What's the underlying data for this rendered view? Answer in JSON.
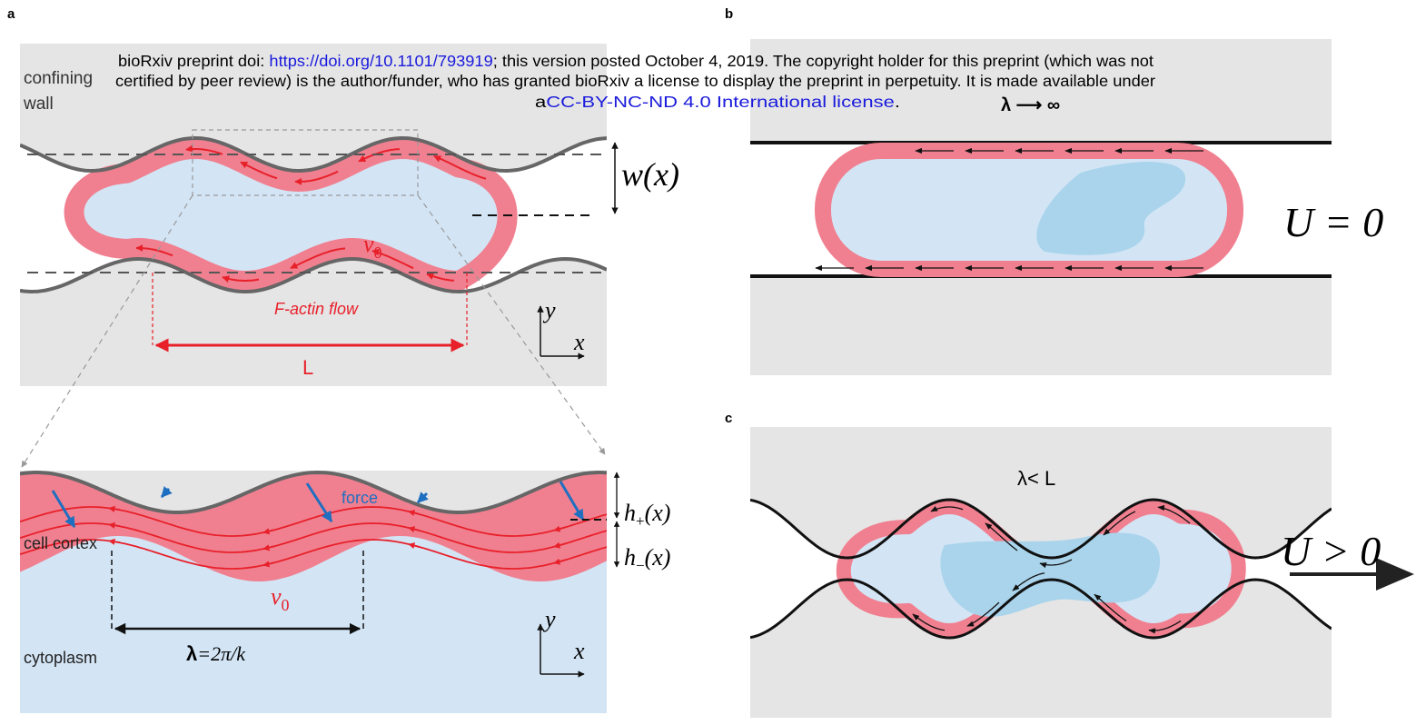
{
  "header": {
    "line1_prefix": "bioRxiv preprint doi: ",
    "doi_link": "https://doi.org/10.1101/793919",
    "line1_suffix": "; this version posted October 4, 2019. The copyright holder for this preprint (which was not",
    "line2": "certified by peer review) is the author/funder, who has granted bioRxiv a license to display the preprint in perpetuity. It is made available under",
    "line3_prefix": "a",
    "license_link": "CC-BY-NC-ND 4.0 International license",
    "line3_suffix": "."
  },
  "panel_a": {
    "label": "a",
    "wall_label": [
      "confining",
      "wall"
    ],
    "width_label": "w(x)",
    "velocity": {
      "base": "v",
      "sub": "0"
    },
    "flow_label": "F-actin flow",
    "length_label": "L",
    "axis_y": "y",
    "axis_x": "x"
  },
  "panel_a_zoom": {
    "force_label": "force",
    "h_plus": {
      "base": "h",
      "sub": "+",
      "arg": "(x)"
    },
    "h_minus": {
      "base": "h",
      "sub": "−",
      "arg": "(x)"
    },
    "cortex_label": "cell cortex",
    "velocity": {
      "base": "v",
      "sub": "0"
    },
    "wavelength_label": {
      "symbol": "λ",
      "rest": "=2π/k"
    },
    "cytoplasm_label": "cytoplasm",
    "axis_y": "y",
    "axis_x": "x"
  },
  "panel_b": {
    "label": "b",
    "wavelength_label": "λ ⟶ ∞",
    "speed_label": "U = 0"
  },
  "panel_c": {
    "label": "c",
    "wavelength_label": "λ< L",
    "speed_label": "U > 0"
  }
}
